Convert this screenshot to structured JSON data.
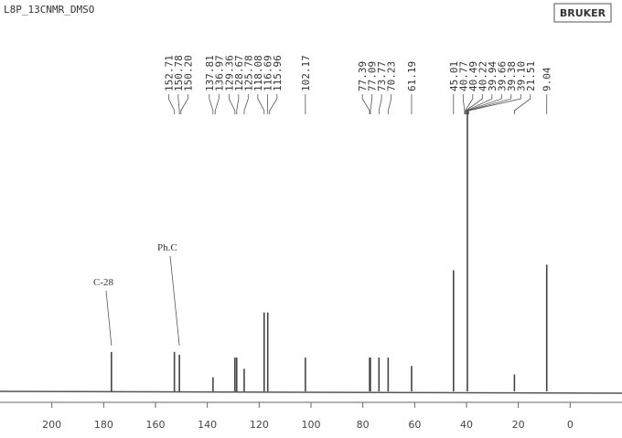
{
  "chart_data": {
    "type": "spectrum",
    "title": "L8P_13CNMR_DMSO",
    "logo": "BRUKER",
    "color": "#444444",
    "x": [
      177.0,
      152.71,
      150.78,
      137.81,
      129.36,
      128.67,
      125.78,
      118.08,
      116.69,
      102.17,
      77.39,
      77.09,
      73.77,
      70.23,
      61.19,
      45.01,
      39.66,
      21.51,
      9.04
    ],
    "values": [
      14,
      14,
      13,
      5,
      12,
      12,
      8,
      28,
      28,
      12,
      12,
      12,
      12,
      12,
      9,
      43,
      100,
      6,
      45
    ],
    "xlim": [
      220,
      -20
    ],
    "ylim": [
      0,
      100
    ],
    "xticks": [
      200,
      180,
      160,
      140,
      120,
      100,
      80,
      60,
      40,
      20,
      0
    ],
    "peak_labels": [
      "152.71",
      "150.78",
      "150.20",
      "137.81",
      "136.97",
      "129.36",
      "128.67",
      "125.78",
      "118.08",
      "116.69",
      "115.96",
      "102.17",
      "77.39",
      "77.09",
      "73.77",
      "70.23",
      "61.19",
      "45.01",
      "40.77",
      "40.49",
      "40.22",
      "39.94",
      "39.66",
      "39.38",
      "39.10",
      "21.51",
      "9.04"
    ],
    "annotations": [
      {
        "text": "C-28",
        "x": 177.0
      },
      {
        "text": "Ph.C",
        "x": 150.78
      }
    ]
  }
}
